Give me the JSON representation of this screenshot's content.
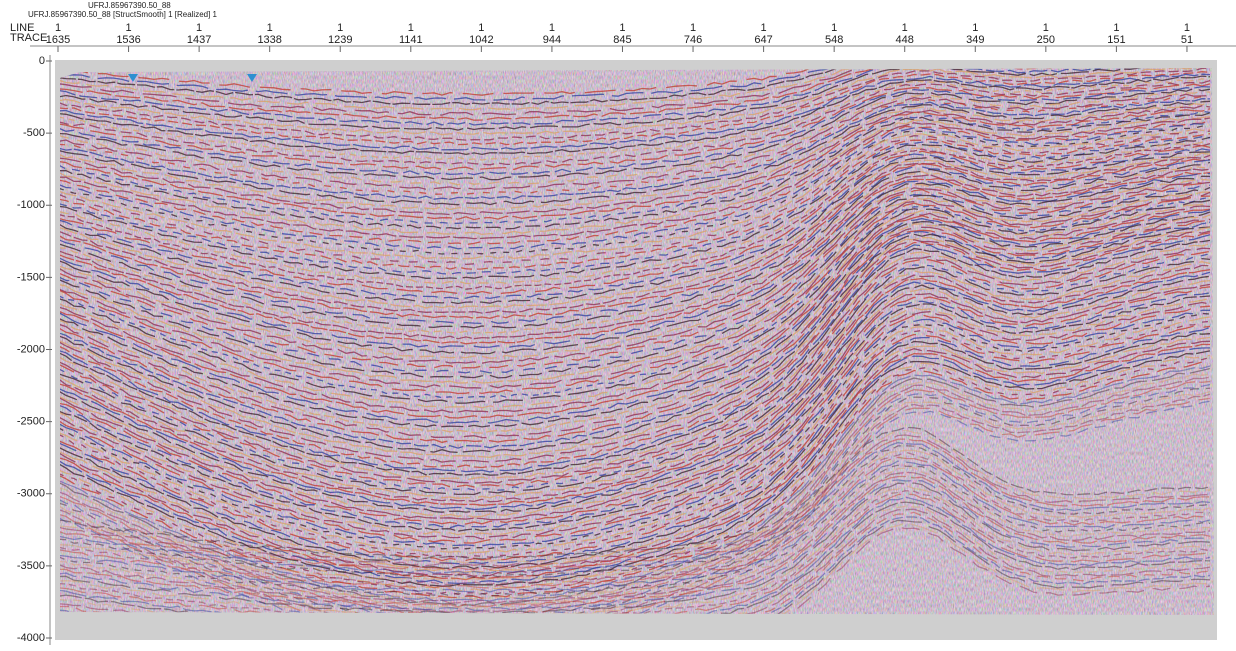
{
  "header": {
    "title": "UFRJ.85967390.50_88",
    "subtitle": "UFRJ.85967390.50_88 [StructSmooth] 1 [Realized] 1"
  },
  "top_axis": {
    "line_label": "LINE",
    "trace_label": "TRACE",
    "ticks": [
      {
        "line": "1",
        "trace": "1635"
      },
      {
        "line": "1",
        "trace": "1536"
      },
      {
        "line": "1",
        "trace": "1437"
      },
      {
        "line": "1",
        "trace": "1338"
      },
      {
        "line": "1",
        "trace": "1239"
      },
      {
        "line": "1",
        "trace": "1141"
      },
      {
        "line": "1",
        "trace": "1042"
      },
      {
        "line": "1",
        "trace": "944"
      },
      {
        "line": "1",
        "trace": "845"
      },
      {
        "line": "1",
        "trace": "746"
      },
      {
        "line": "1",
        "trace": "647"
      },
      {
        "line": "1",
        "trace": "548"
      },
      {
        "line": "1",
        "trace": "448"
      },
      {
        "line": "1",
        "trace": "349"
      },
      {
        "line": "1",
        "trace": "250"
      },
      {
        "line": "1",
        "trace": "151"
      },
      {
        "line": "1",
        "trace": "51"
      }
    ]
  },
  "left_axis": {
    "ticks": [
      0,
      -500,
      -1000,
      -1500,
      -2000,
      -2500,
      -3000,
      -3500,
      -4000
    ]
  }
}
